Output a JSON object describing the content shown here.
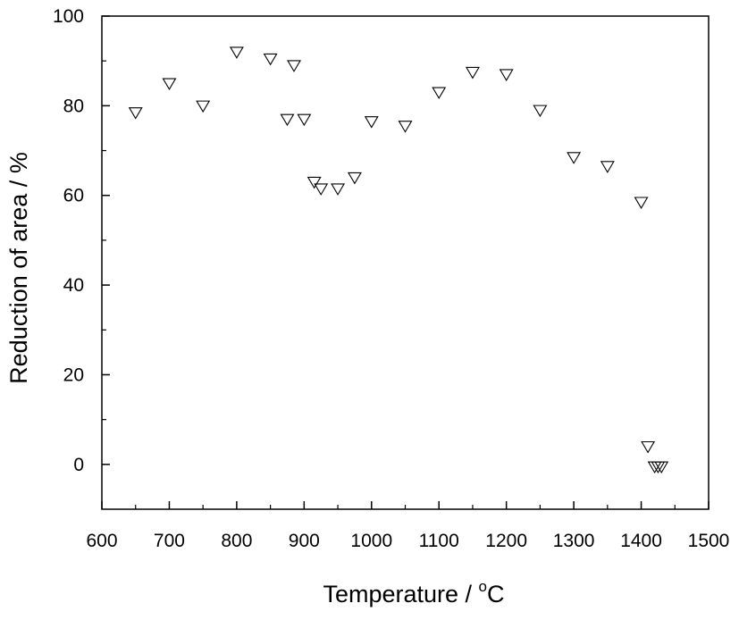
{
  "chart_data": {
    "type": "scatter",
    "xlabel_prefix": "Temperature / ",
    "xlabel_degree": "o",
    "xlabel_unit": "C",
    "ylabel": "Reduction of area / %",
    "xlim": [
      600,
      1500
    ],
    "ylim": [
      -10,
      100
    ],
    "xticks": [
      600,
      700,
      800,
      900,
      1000,
      1100,
      1200,
      1300,
      1400,
      1500
    ],
    "yticks": [
      0,
      20,
      40,
      60,
      80,
      100
    ],
    "x_minor_step": 50,
    "y_minor_step": 10,
    "marker": "open-down-triangle",
    "grid": false,
    "points": [
      {
        "x": 650,
        "y": 78.5
      },
      {
        "x": 700,
        "y": 85
      },
      {
        "x": 750,
        "y": 80
      },
      {
        "x": 800,
        "y": 92
      },
      {
        "x": 850,
        "y": 90.5
      },
      {
        "x": 875,
        "y": 77
      },
      {
        "x": 885,
        "y": 89
      },
      {
        "x": 900,
        "y": 77
      },
      {
        "x": 915,
        "y": 63
      },
      {
        "x": 925,
        "y": 61.5
      },
      {
        "x": 950,
        "y": 61.5
      },
      {
        "x": 975,
        "y": 64
      },
      {
        "x": 1000,
        "y": 76.5
      },
      {
        "x": 1050,
        "y": 75.5
      },
      {
        "x": 1100,
        "y": 83
      },
      {
        "x": 1150,
        "y": 87.5
      },
      {
        "x": 1200,
        "y": 87
      },
      {
        "x": 1250,
        "y": 79
      },
      {
        "x": 1300,
        "y": 68.5
      },
      {
        "x": 1350,
        "y": 66.5
      },
      {
        "x": 1400,
        "y": 58.5
      },
      {
        "x": 1410,
        "y": 4
      },
      {
        "x": 1420,
        "y": -0.5
      },
      {
        "x": 1425,
        "y": -0.5
      },
      {
        "x": 1430,
        "y": -0.5
      }
    ]
  }
}
